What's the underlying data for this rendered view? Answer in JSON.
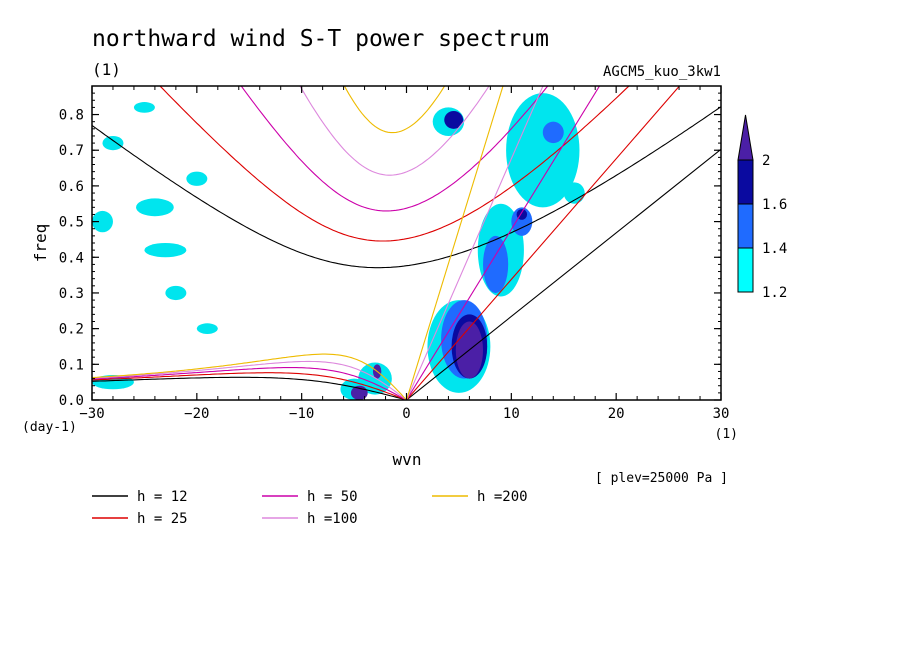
{
  "chart_data": {
    "type": "heatmap",
    "title": "northward wind S-T power spectrum",
    "subtitle": "(1)",
    "run_label": "AGCM5_kuo_3kw1",
    "xlabel": "wvn",
    "ylabel": "freq",
    "y_unit": "(day-1)",
    "x_unit": "(1)",
    "xlim": [
      -30,
      30
    ],
    "ylim": [
      0,
      0.88
    ],
    "x_ticks": [
      "-30",
      "-20",
      "-10",
      "0",
      "10",
      "20",
      "30"
    ],
    "y_ticks": [
      "0.0",
      "0.1",
      "0.2",
      "0.3",
      "0.4",
      "0.5",
      "0.6",
      "0.7",
      "0.8"
    ],
    "level_note": "[ plev=25000 Pa ]",
    "colorbar": {
      "levels": [
        "1.2",
        "1.4",
        "1.6",
        "2"
      ],
      "colors": [
        "#00ffff",
        "#1f6bff",
        "#0a0aa0",
        "#4b1fa6"
      ]
    },
    "contours": [
      {
        "level": 1.2,
        "color": "#00e5ee",
        "regions": [
          {
            "x": 5,
            "y": 0.15,
            "rx": 3.0,
            "ry": 0.13
          },
          {
            "x": 9,
            "y": 0.42,
            "rx": 2.2,
            "ry": 0.13
          },
          {
            "x": 13,
            "y": 0.7,
            "rx": 3.5,
            "ry": 0.16
          },
          {
            "x": 4,
            "y": 0.78,
            "rx": 1.5,
            "ry": 0.04
          },
          {
            "x": -3,
            "y": 0.06,
            "rx": 1.6,
            "ry": 0.045
          },
          {
            "x": -5,
            "y": 0.03,
            "rx": 1.3,
            "ry": 0.03
          },
          {
            "x": -28,
            "y": 0.72,
            "rx": 1.0,
            "ry": 0.02
          },
          {
            "x": -29,
            "y": 0.5,
            "rx": 1.0,
            "ry": 0.03
          },
          {
            "x": -24,
            "y": 0.54,
            "rx": 1.8,
            "ry": 0.025
          },
          {
            "x": -23,
            "y": 0.42,
            "rx": 2.0,
            "ry": 0.02
          },
          {
            "x": -22,
            "y": 0.3,
            "rx": 1.0,
            "ry": 0.02
          },
          {
            "x": -28,
            "y": 0.05,
            "rx": 2.0,
            "ry": 0.02
          },
          {
            "x": -20,
            "y": 0.62,
            "rx": 1.0,
            "ry": 0.02
          },
          {
            "x": 16,
            "y": 0.58,
            "rx": 1.0,
            "ry": 0.03
          },
          {
            "x": -25,
            "y": 0.82,
            "rx": 1.0,
            "ry": 0.015
          },
          {
            "x": -19,
            "y": 0.2,
            "rx": 1.0,
            "ry": 0.015
          }
        ]
      },
      {
        "level": 1.4,
        "color": "#1f6bff",
        "regions": [
          {
            "x": 5.5,
            "y": 0.17,
            "rx": 2.2,
            "ry": 0.11
          },
          {
            "x": 8.5,
            "y": 0.38,
            "rx": 1.2,
            "ry": 0.08
          },
          {
            "x": 11,
            "y": 0.5,
            "rx": 1.0,
            "ry": 0.04
          },
          {
            "x": 14,
            "y": 0.75,
            "rx": 1.0,
            "ry": 0.03
          }
        ]
      },
      {
        "level": 1.6,
        "color": "#0a0aa0",
        "regions": [
          {
            "x": 6,
            "y": 0.15,
            "rx": 1.7,
            "ry": 0.09
          },
          {
            "x": 4.5,
            "y": 0.785,
            "rx": 0.9,
            "ry": 0.025
          },
          {
            "x": 11,
            "y": 0.52,
            "rx": 0.5,
            "ry": 0.015
          }
        ]
      },
      {
        "level": 2.0,
        "color": "#4b1fa6",
        "regions": [
          {
            "x": 6,
            "y": 0.14,
            "rx": 1.3,
            "ry": 0.08
          },
          {
            "x": -4.5,
            "y": 0.02,
            "rx": 0.8,
            "ry": 0.02
          },
          {
            "x": -2.8,
            "y": 0.08,
            "rx": 0.4,
            "ry": 0.02
          }
        ]
      }
    ],
    "series": [
      {
        "name": "h = 12",
        "h": 12,
        "color": "#000000"
      },
      {
        "name": "h = 25",
        "h": 25,
        "color": "#dd0000"
      },
      {
        "name": "h = 50",
        "h": 50,
        "color": "#cc00aa"
      },
      {
        "name": "h =100",
        "h": 100,
        "color": "#dd88dd"
      },
      {
        "name": "h =200",
        "h": 200,
        "color": "#eebb00"
      }
    ]
  }
}
